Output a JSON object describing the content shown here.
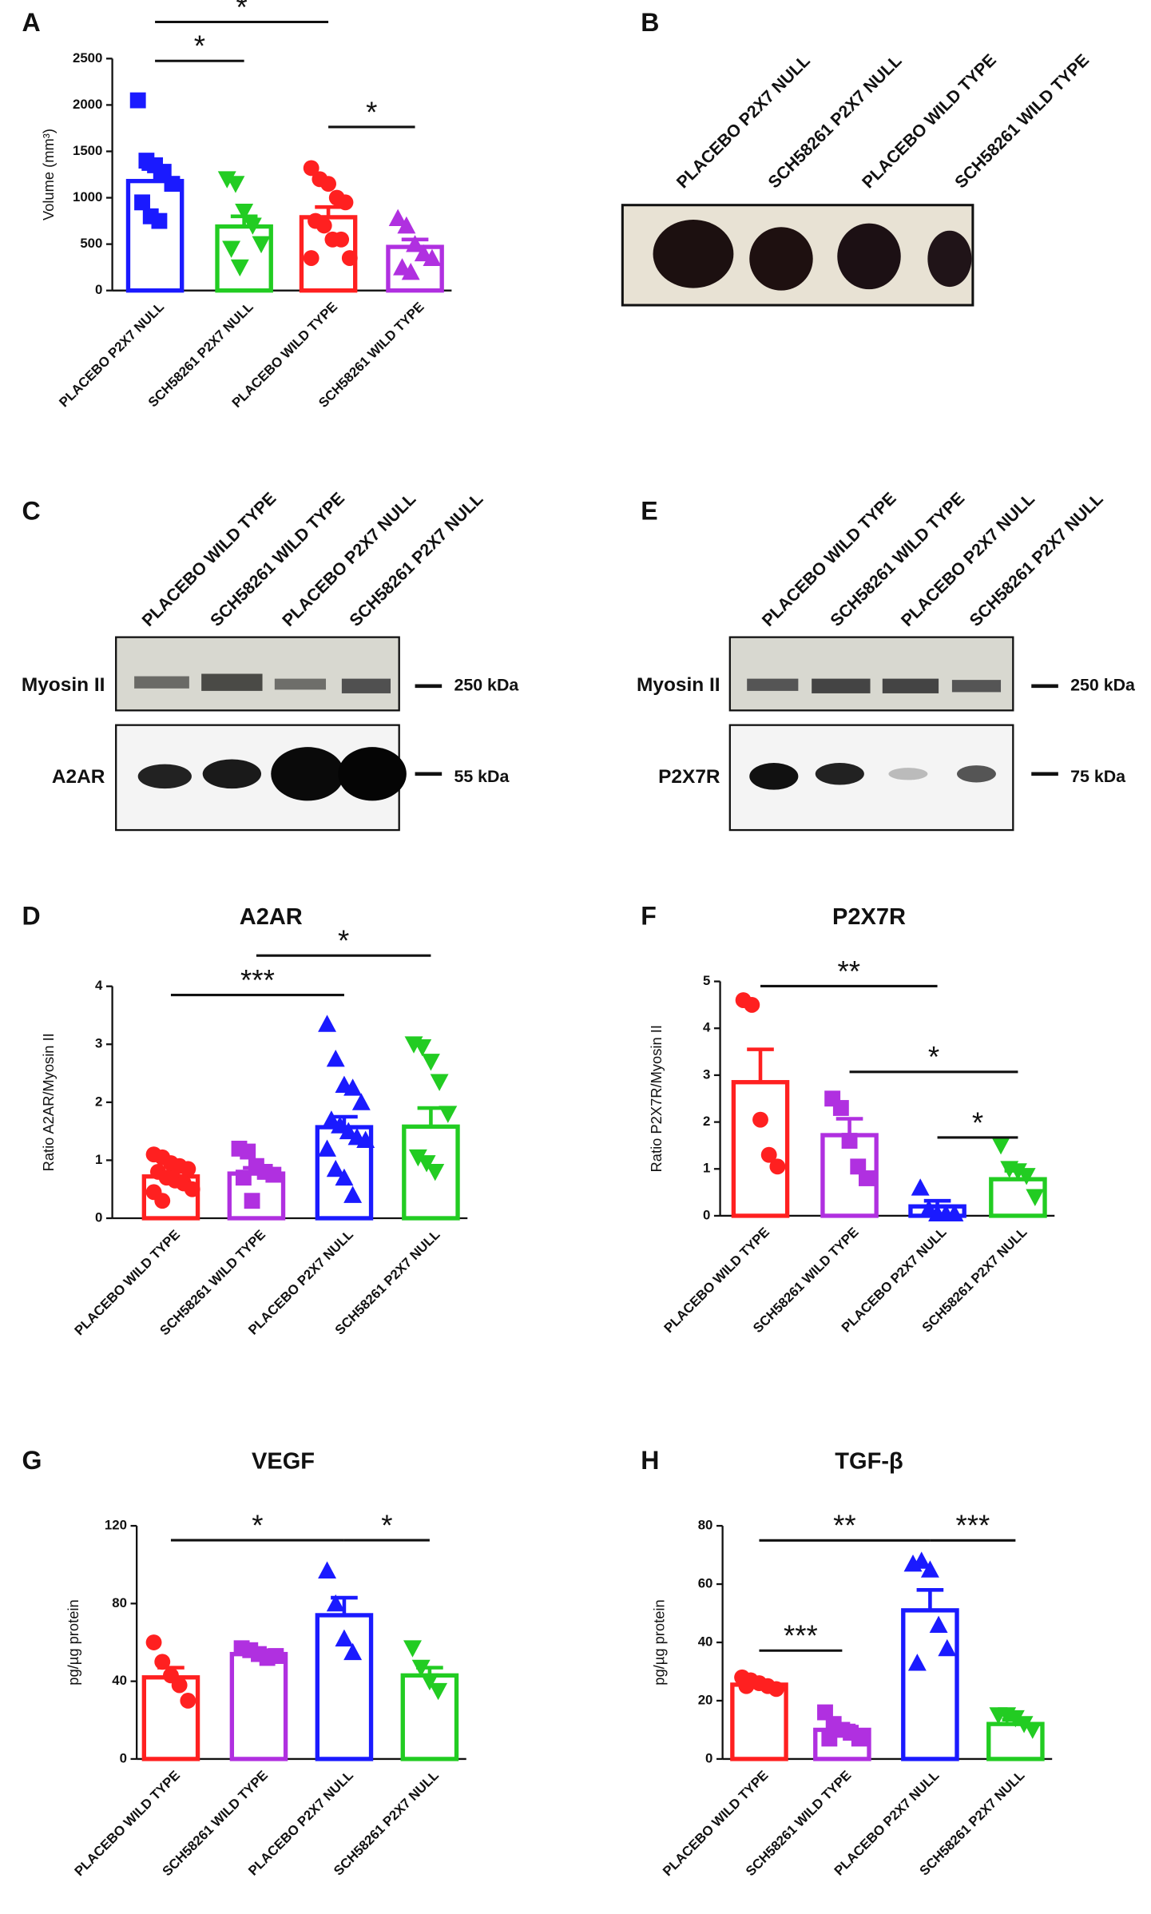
{
  "chart_data": [
    {
      "type": "bar",
      "panel": "A",
      "ylabel": "Volume (mm³)",
      "categories": [
        "PLACEBO P2X7 NULL",
        "SCH58261 P2X7 NULL",
        "PLACEBO WILD TYPE",
        "SCH58261 WILD TYPE"
      ],
      "colors": [
        "#1a1aff",
        "#22cc22",
        "#ff2020",
        "#b030e0"
      ],
      "markers": [
        "square",
        "triangle-down",
        "circle",
        "triangle-up"
      ],
      "values": [
        1180,
        690,
        790,
        470
      ],
      "errors": [
        130,
        110,
        110,
        80
      ],
      "points": [
        [
          2050,
          1400,
          1350,
          1280,
          1150,
          950,
          800,
          750
        ],
        [
          1200,
          1150,
          850,
          700,
          500,
          450,
          250
        ],
        [
          1320,
          1200,
          1150,
          1000,
          950,
          750,
          700,
          550,
          550,
          350,
          350
        ],
        [
          780,
          700,
          500,
          400,
          350,
          250,
          200
        ]
      ],
      "ylim": [
        0,
        2500
      ],
      "yticks": [
        0,
        500,
        1000,
        1500,
        2000,
        2500
      ],
      "brackets": [
        {
          "from": 0,
          "to": 2,
          "y": 2895,
          "label": "*"
        },
        {
          "from": 0,
          "to": 1,
          "y": 2475,
          "label": "*"
        },
        {
          "from": 2,
          "to": 3,
          "y": 1763,
          "label": "*"
        }
      ]
    },
    {
      "type": "bar",
      "panel": "D",
      "title": "A2AR",
      "ylabel": "Ratio A2AR/Myosin II",
      "categories": [
        "PLACEBO WILD TYPE",
        "SCH58261 WILD TYPE",
        "PLACEBO P2X7 NULL",
        "SCH58261 P2X7 NULL"
      ],
      "colors": [
        "#ff2020",
        "#b030e0",
        "#1a1aff",
        "#22cc22"
      ],
      "markers": [
        "circle",
        "square",
        "triangle-up",
        "triangle-down"
      ],
      "values": [
        0.72,
        0.77,
        1.57,
        1.58
      ],
      "errors": [
        0.08,
        0.1,
        0.18,
        0.32
      ],
      "points": [
        [
          1.1,
          1.05,
          0.95,
          0.9,
          0.85,
          0.8,
          0.7,
          0.65,
          0.6,
          0.5,
          0.45,
          0.3
        ],
        [
          1.2,
          1.15,
          0.9,
          0.8,
          0.75,
          0.7,
          0.3
        ],
        [
          3.35,
          2.75,
          2.3,
          2.25,
          2.0,
          1.7,
          1.6,
          1.5,
          1.4,
          1.35,
          1.2,
          0.85,
          0.7,
          0.4
        ],
        [
          3.0,
          2.95,
          2.7,
          2.35,
          1.8,
          1.05,
          0.95,
          0.8
        ]
      ],
      "ylim": [
        0,
        4
      ],
      "yticks": [
        0,
        1,
        2,
        3,
        4
      ],
      "brackets": [
        {
          "from": 0,
          "to": 2,
          "y": 3.85,
          "label": "***"
        },
        {
          "from": 1,
          "to": 3,
          "y": 4.53,
          "label": "*"
        }
      ]
    },
    {
      "type": "bar",
      "panel": "F",
      "title": "P2X7R",
      "ylabel": "Ratio P2X7R/Myosin II",
      "categories": [
        "PLACEBO WILD TYPE",
        "SCH58261 WILD TYPE",
        "PLACEBO P2X7 NULL",
        "SCH58261 P2X7 NULL"
      ],
      "colors": [
        "#ff2020",
        "#b030e0",
        "#1a1aff",
        "#22cc22"
      ],
      "markers": [
        "circle",
        "square",
        "triangle-up",
        "triangle-down"
      ],
      "values": [
        2.85,
        1.72,
        0.2,
        0.78
      ],
      "errors": [
        0.7,
        0.35,
        0.12,
        0.18
      ],
      "points": [
        [
          4.6,
          4.5,
          2.05,
          1.3,
          1.05
        ],
        [
          2.5,
          2.3,
          1.6,
          1.05,
          0.8
        ],
        [
          0.6,
          0.15,
          0.05,
          0.05,
          0.05
        ],
        [
          1.5,
          1.0,
          0.95,
          0.85,
          0.4
        ]
      ],
      "ylim": [
        0,
        5
      ],
      "yticks": [
        0,
        1,
        2,
        3,
        4,
        5
      ],
      "brackets": [
        {
          "from": 0,
          "to": 2,
          "y": 4.9,
          "label": "**"
        },
        {
          "from": 1,
          "to": 3,
          "y": 3.07,
          "label": "*"
        },
        {
          "from": 2,
          "to": 3,
          "y": 1.67,
          "label": "*"
        }
      ]
    },
    {
      "type": "bar",
      "panel": "G",
      "title": "VEGF",
      "ylabel": "pg/µg protein",
      "categories": [
        "PLACEBO WILD TYPE",
        "SCH58261 WILD TYPE",
        "PLACEBO P2X7 NULL",
        "SCH58261 P2X7 NULL"
      ],
      "colors": [
        "#ff2020",
        "#b030e0",
        "#1a1aff",
        "#22cc22"
      ],
      "markers": [
        "circle",
        "square",
        "triangle-up",
        "triangle-down"
      ],
      "values": [
        42,
        54,
        74,
        43
      ],
      "errors": [
        5,
        2,
        9,
        4
      ],
      "points": [
        [
          60,
          50,
          43,
          38,
          30
        ],
        [
          57,
          56,
          54,
          52,
          53
        ],
        [
          97,
          80,
          62,
          55
        ],
        [
          57,
          47,
          40,
          35
        ]
      ],
      "ylim": [
        0,
        120
      ],
      "yticks": [
        0,
        40,
        80,
        120
      ],
      "brackets": [
        {
          "from": 0,
          "to": 2,
          "y": 112.6,
          "label": "*"
        },
        {
          "from": 2,
          "to": 3,
          "y": 112.6,
          "label": "*"
        }
      ]
    },
    {
      "type": "bar",
      "panel": "H",
      "title": "TGF-β",
      "ylabel": "pg/µg protein",
      "categories": [
        "PLACEBO WILD TYPE",
        "SCH58261 WILD TYPE",
        "PLACEBO P2X7 NULL",
        "SCH58261 P2X7 NULL"
      ],
      "colors": [
        "#ff2020",
        "#b030e0",
        "#1a1aff",
        "#22cc22"
      ],
      "markers": [
        "circle",
        "square",
        "triangle-up",
        "triangle-down"
      ],
      "values": [
        25.5,
        10,
        51,
        12
      ],
      "errors": [
        1,
        1.5,
        7,
        1.5
      ],
      "points": [
        [
          28,
          27,
          26,
          25,
          24,
          25
        ],
        [
          16,
          12,
          10,
          9,
          7,
          7
        ],
        [
          67,
          68,
          65,
          46,
          38,
          33
        ],
        [
          15,
          15,
          14,
          12,
          10
        ]
      ],
      "ylim": [
        0,
        80
      ],
      "yticks": [
        0,
        20,
        40,
        60,
        80
      ],
      "brackets": [
        {
          "from": 0,
          "to": 2,
          "y": 75,
          "label": "**"
        },
        {
          "from": 2,
          "to": 3,
          "y": 75,
          "label": "***"
        },
        {
          "from": 0,
          "to": 1,
          "y": 37.2,
          "label": "***"
        }
      ]
    }
  ],
  "images": [
    {
      "panel": "B",
      "lanes": [
        "PLACEBO P2X7 NULL",
        "SCH58261 P2X7 NULL",
        "PLACEBO WILD TYPE",
        "SCH58261 WILD TYPE"
      ]
    },
    {
      "panel": "C",
      "lanes": [
        "PLACEBO WILD TYPE",
        "SCH58261 WILD TYPE",
        "PLACEBO P2X7 NULL",
        "SCH58261 P2X7 NULL"
      ],
      "rows": [
        {
          "label": "Myosin II",
          "size": "250 kDa"
        },
        {
          "label": "A2AR",
          "size": "55 kDa"
        }
      ]
    },
    {
      "panel": "E",
      "lanes": [
        "PLACEBO WILD TYPE",
        "SCH58261 WILD TYPE",
        "PLACEBO P2X7 NULL",
        "SCH58261 P2X7 NULL"
      ],
      "rows": [
        {
          "label": "Myosin II",
          "size": "250 kDa"
        },
        {
          "label": "P2X7R",
          "size": "75 kDa"
        }
      ]
    }
  ]
}
